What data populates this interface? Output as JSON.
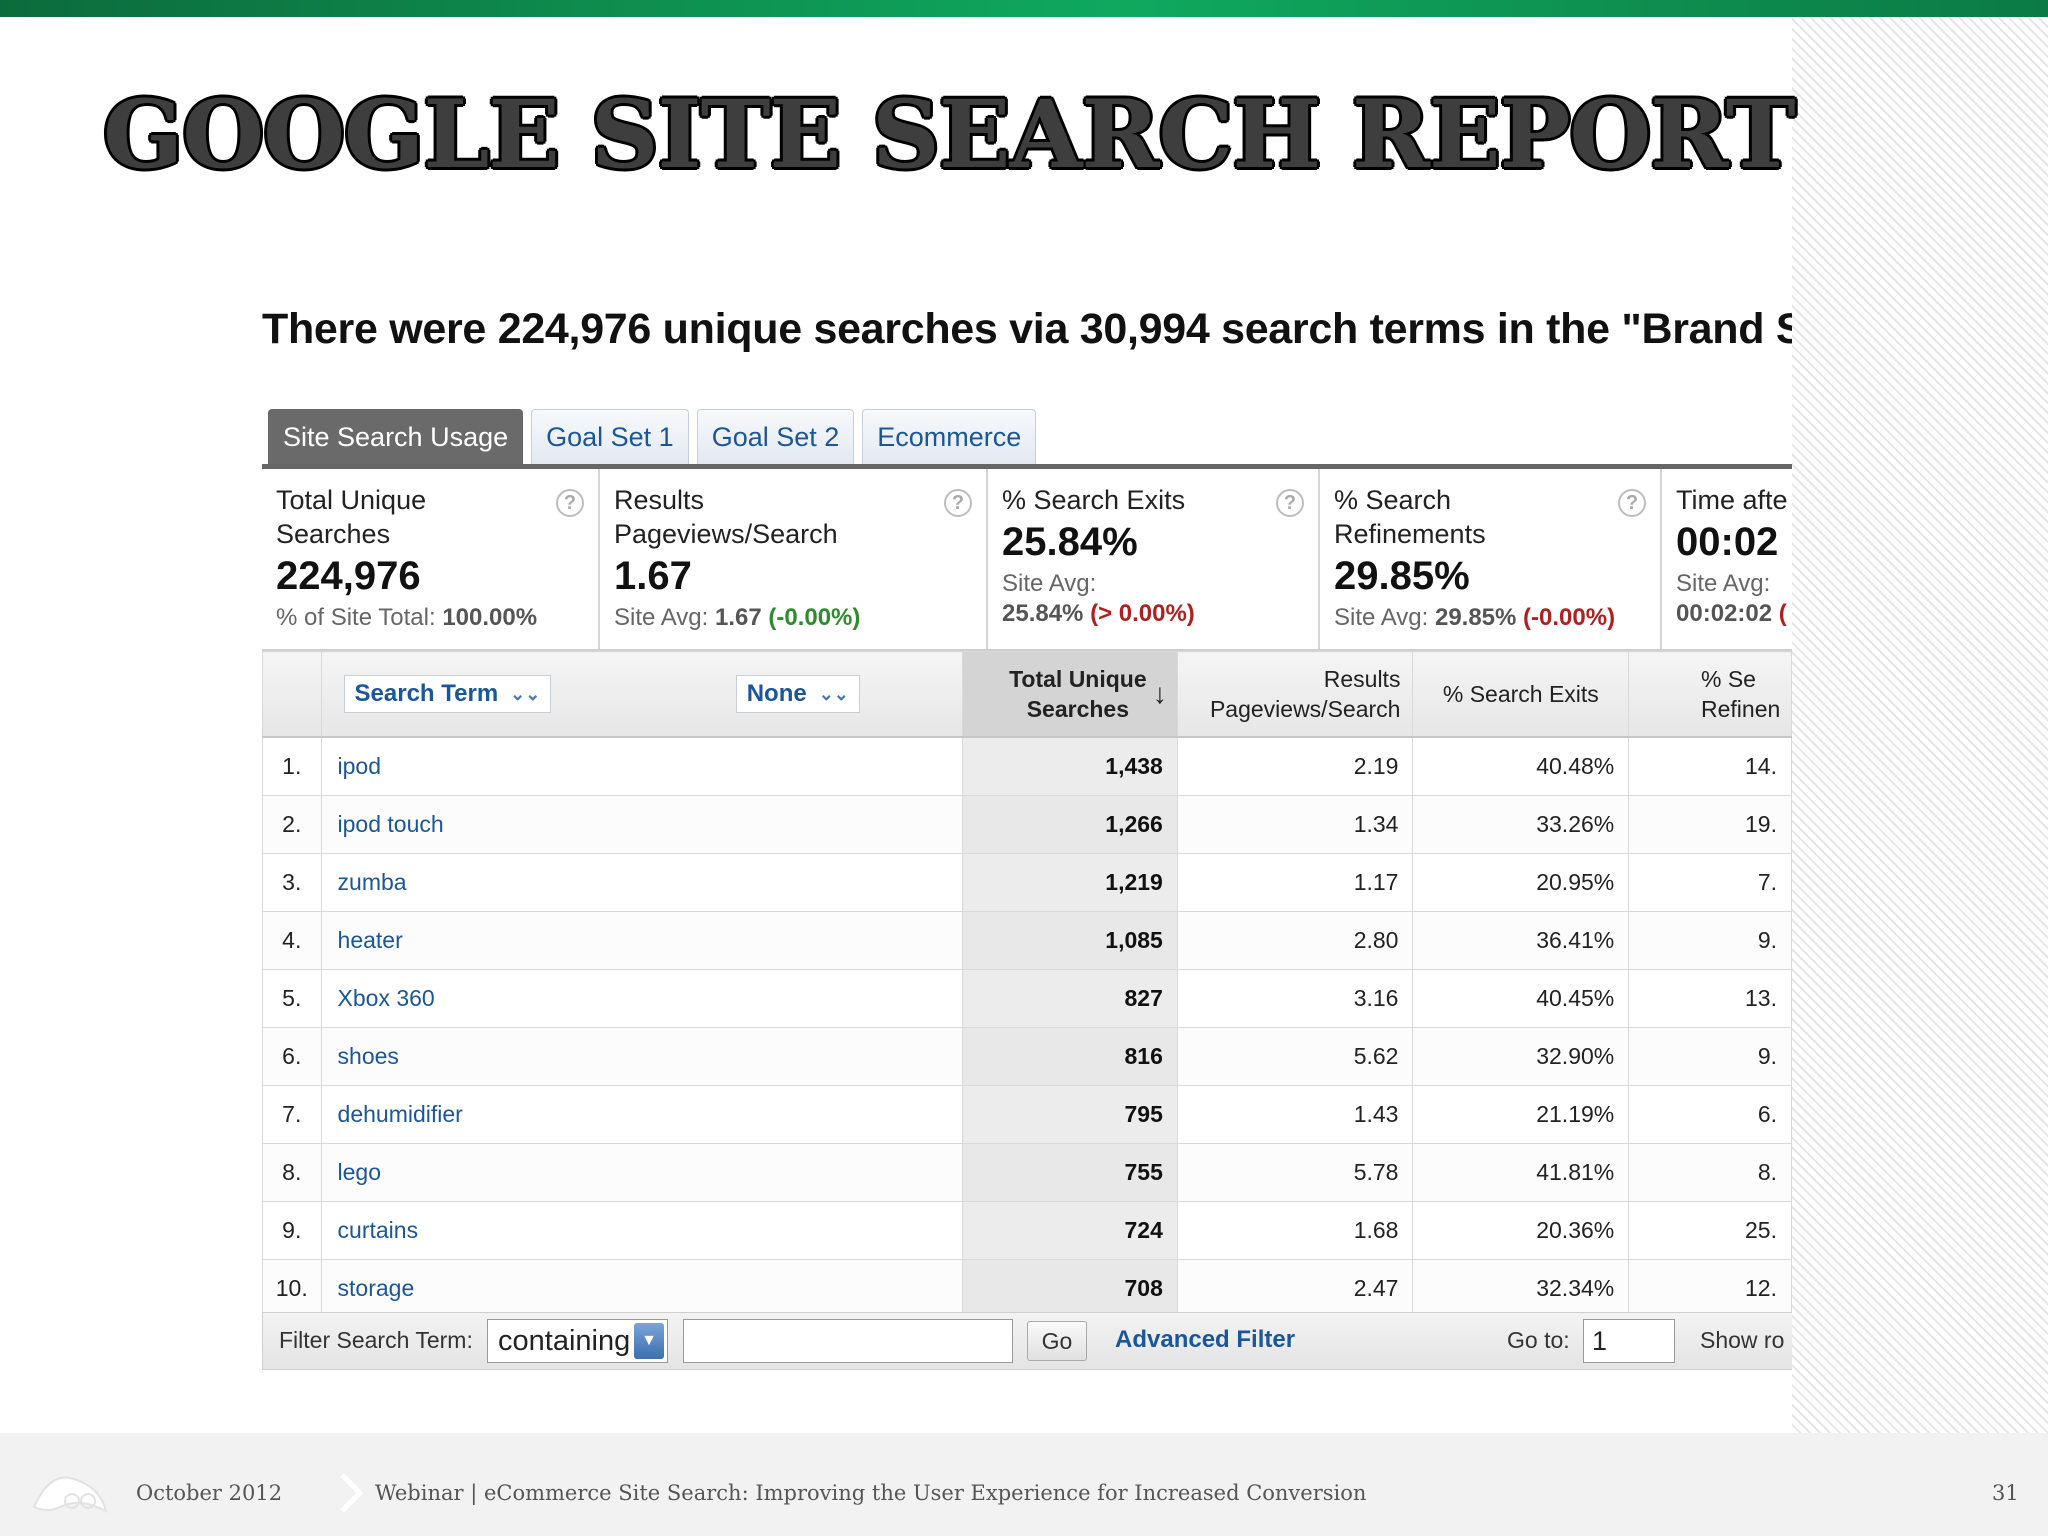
{
  "slide": {
    "title": "GOOGLE SITE SEARCH REPORT",
    "summary": "There were 224,976 unique searches via 30,994 search terms in the \"Brand S",
    "accent_color": "#0fa95e"
  },
  "tabs": [
    {
      "label": "Site Search Usage",
      "active": true
    },
    {
      "label": "Goal Set 1",
      "active": false
    },
    {
      "label": "Goal Set 2",
      "active": false
    },
    {
      "label": "Ecommerce",
      "active": false
    }
  ],
  "metrics": [
    {
      "label": "Total Unique Searches",
      "value": "224,976",
      "avg_label": "% of Site Total:",
      "avg_value": "100.00%",
      "delta": ""
    },
    {
      "label": "Results Pageviews/Search",
      "value": "1.67",
      "avg_label": "Site Avg:",
      "avg_value": "1.67",
      "delta": "(-0.00%)"
    },
    {
      "label": "% Search Exits",
      "value": "25.84%",
      "avg_label": "Site Avg:",
      "avg_value": "25.84%",
      "delta": "(> 0.00%)"
    },
    {
      "label": "% Search Refinements",
      "value": "29.85%",
      "avg_label": "Site Avg:",
      "avg_value": "29.85%",
      "delta": "(-0.00%)"
    },
    {
      "label": "Time afte",
      "value": "00:02",
      "avg_label": "Site Avg:",
      "avg_value": "00:02:02",
      "delta": "("
    }
  ],
  "table": {
    "primary_dimension": "Search Term",
    "secondary_dimension": "None",
    "columns": [
      "Total Unique Searches",
      "Results Pageviews/Search",
      "% Search Exits",
      "% Se Refinen"
    ],
    "rows": [
      {
        "idx": "1.",
        "term": "ipod",
        "searches": "1,438",
        "pps": "2.19",
        "exits": "40.48%",
        "refine": "14."
      },
      {
        "idx": "2.",
        "term": "ipod touch",
        "searches": "1,266",
        "pps": "1.34",
        "exits": "33.26%",
        "refine": "19."
      },
      {
        "idx": "3.",
        "term": "zumba",
        "searches": "1,219",
        "pps": "1.17",
        "exits": "20.95%",
        "refine": "7."
      },
      {
        "idx": "4.",
        "term": "heater",
        "searches": "1,085",
        "pps": "2.80",
        "exits": "36.41%",
        "refine": "9."
      },
      {
        "idx": "5.",
        "term": "Xbox 360",
        "searches": "827",
        "pps": "3.16",
        "exits": "40.45%",
        "refine": "13."
      },
      {
        "idx": "6.",
        "term": "shoes",
        "searches": "816",
        "pps": "5.62",
        "exits": "32.90%",
        "refine": "9."
      },
      {
        "idx": "7.",
        "term": "dehumidifier",
        "searches": "795",
        "pps": "1.43",
        "exits": "21.19%",
        "refine": "6."
      },
      {
        "idx": "8.",
        "term": "lego",
        "searches": "755",
        "pps": "5.78",
        "exits": "41.81%",
        "refine": "8."
      },
      {
        "idx": "9.",
        "term": "curtains",
        "searches": "724",
        "pps": "1.68",
        "exits": "20.36%",
        "refine": "25."
      },
      {
        "idx": "10.",
        "term": "storage",
        "searches": "708",
        "pps": "2.47",
        "exits": "32.34%",
        "refine": "12."
      }
    ]
  },
  "filter": {
    "label": "Filter Search Term:",
    "match_type": "containing",
    "value": "",
    "go_label": "Go",
    "advanced_label": "Advanced Filter",
    "goto_label": "Go to:",
    "goto_value": "1",
    "show_rows_label": "Show ro"
  },
  "footer": {
    "date": "October 2012",
    "caption": "Webinar | eCommerce Site Search: Improving the User Experience for Increased Conversion",
    "page": "31"
  }
}
